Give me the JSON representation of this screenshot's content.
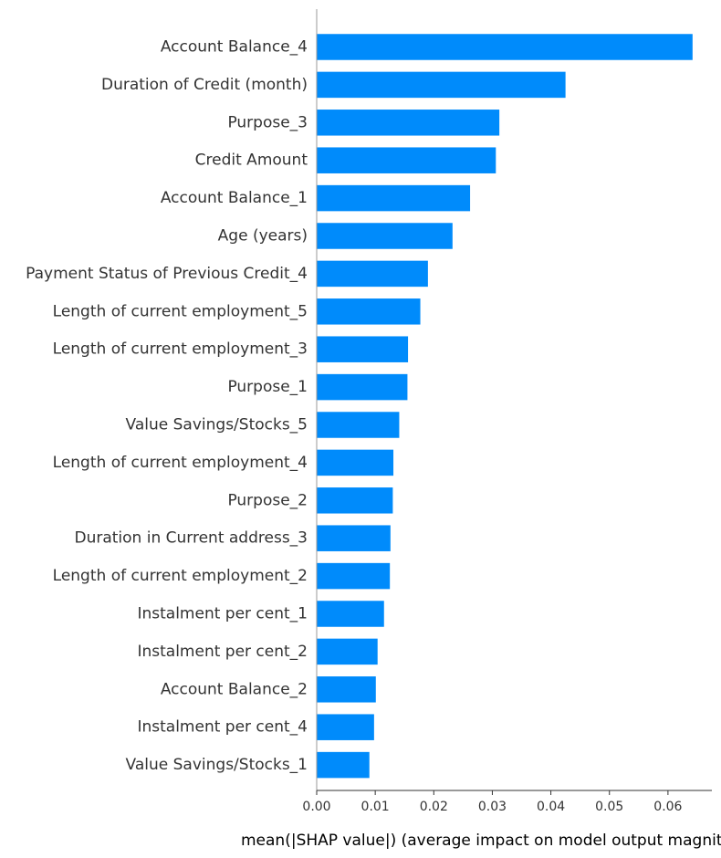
{
  "chart_data": {
    "type": "bar",
    "orientation": "horizontal",
    "categories": [
      "Account Balance_4",
      "Duration of Credit (month)",
      "Purpose_3",
      "Credit Amount",
      "Account Balance_1",
      "Age (years)",
      "Payment Status of Previous Credit_4",
      "Length of current employment_5",
      "Length of current employment_3",
      "Purpose_1",
      "Value Savings/Stocks_5",
      "Length of current employment_4",
      "Purpose_2",
      "Duration in Current address_3",
      "Length of current employment_2",
      "Instalment per cent_1",
      "Instalment per cent_2",
      "Account Balance_2",
      "Instalment per cent_4",
      "Value Savings/Stocks_1"
    ],
    "values": [
      0.0642,
      0.0425,
      0.0312,
      0.0306,
      0.0262,
      0.0232,
      0.019,
      0.0177,
      0.0156,
      0.0155,
      0.0141,
      0.0131,
      0.013,
      0.0126,
      0.0125,
      0.0115,
      0.0104,
      0.0101,
      0.0098,
      0.009
    ],
    "xlabel": "mean(|SHAP value|) (average impact on model output magnitude)",
    "ylabel": "",
    "xlim": [
      0,
      0.0675
    ],
    "xticks": [
      "0.00",
      "0.01",
      "0.02",
      "0.03",
      "0.04",
      "0.05",
      "0.06"
    ],
    "grid": false,
    "bar_color": "#008bfb"
  }
}
